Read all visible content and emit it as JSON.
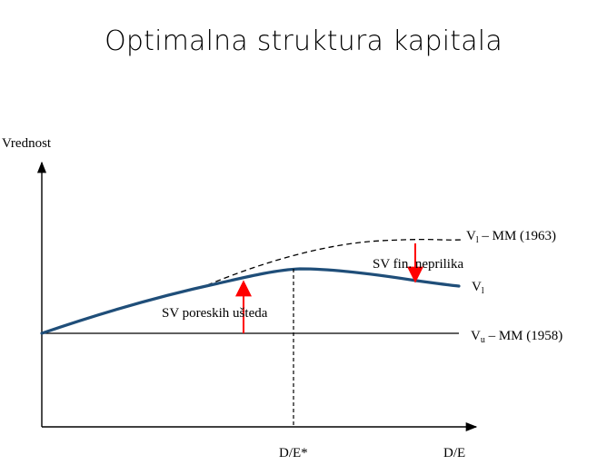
{
  "title": "Optimalna struktura kapitala",
  "diagram": {
    "y_axis_label": "Vrednost",
    "x_axis_label": "D/E",
    "optimum_label": "D/E*",
    "curves": {
      "vl_mm_1963": {
        "main": "V",
        "sub": "l",
        "tail": " – MM (1963)",
        "style": "dashed"
      },
      "vl": {
        "main": "V",
        "sub": "l",
        "tail": ""
      },
      "vu_mm_1958": {
        "main": "V",
        "sub": "u",
        "tail": " – MM (1958)"
      }
    },
    "annotations": {
      "tax_savings": "SV poreskih ušteda",
      "distress_costs": "SV fin. neprilika"
    },
    "colors": {
      "vl_curve": "#1f4e79",
      "arrows": "#ff0000",
      "lines": "#000000"
    }
  }
}
